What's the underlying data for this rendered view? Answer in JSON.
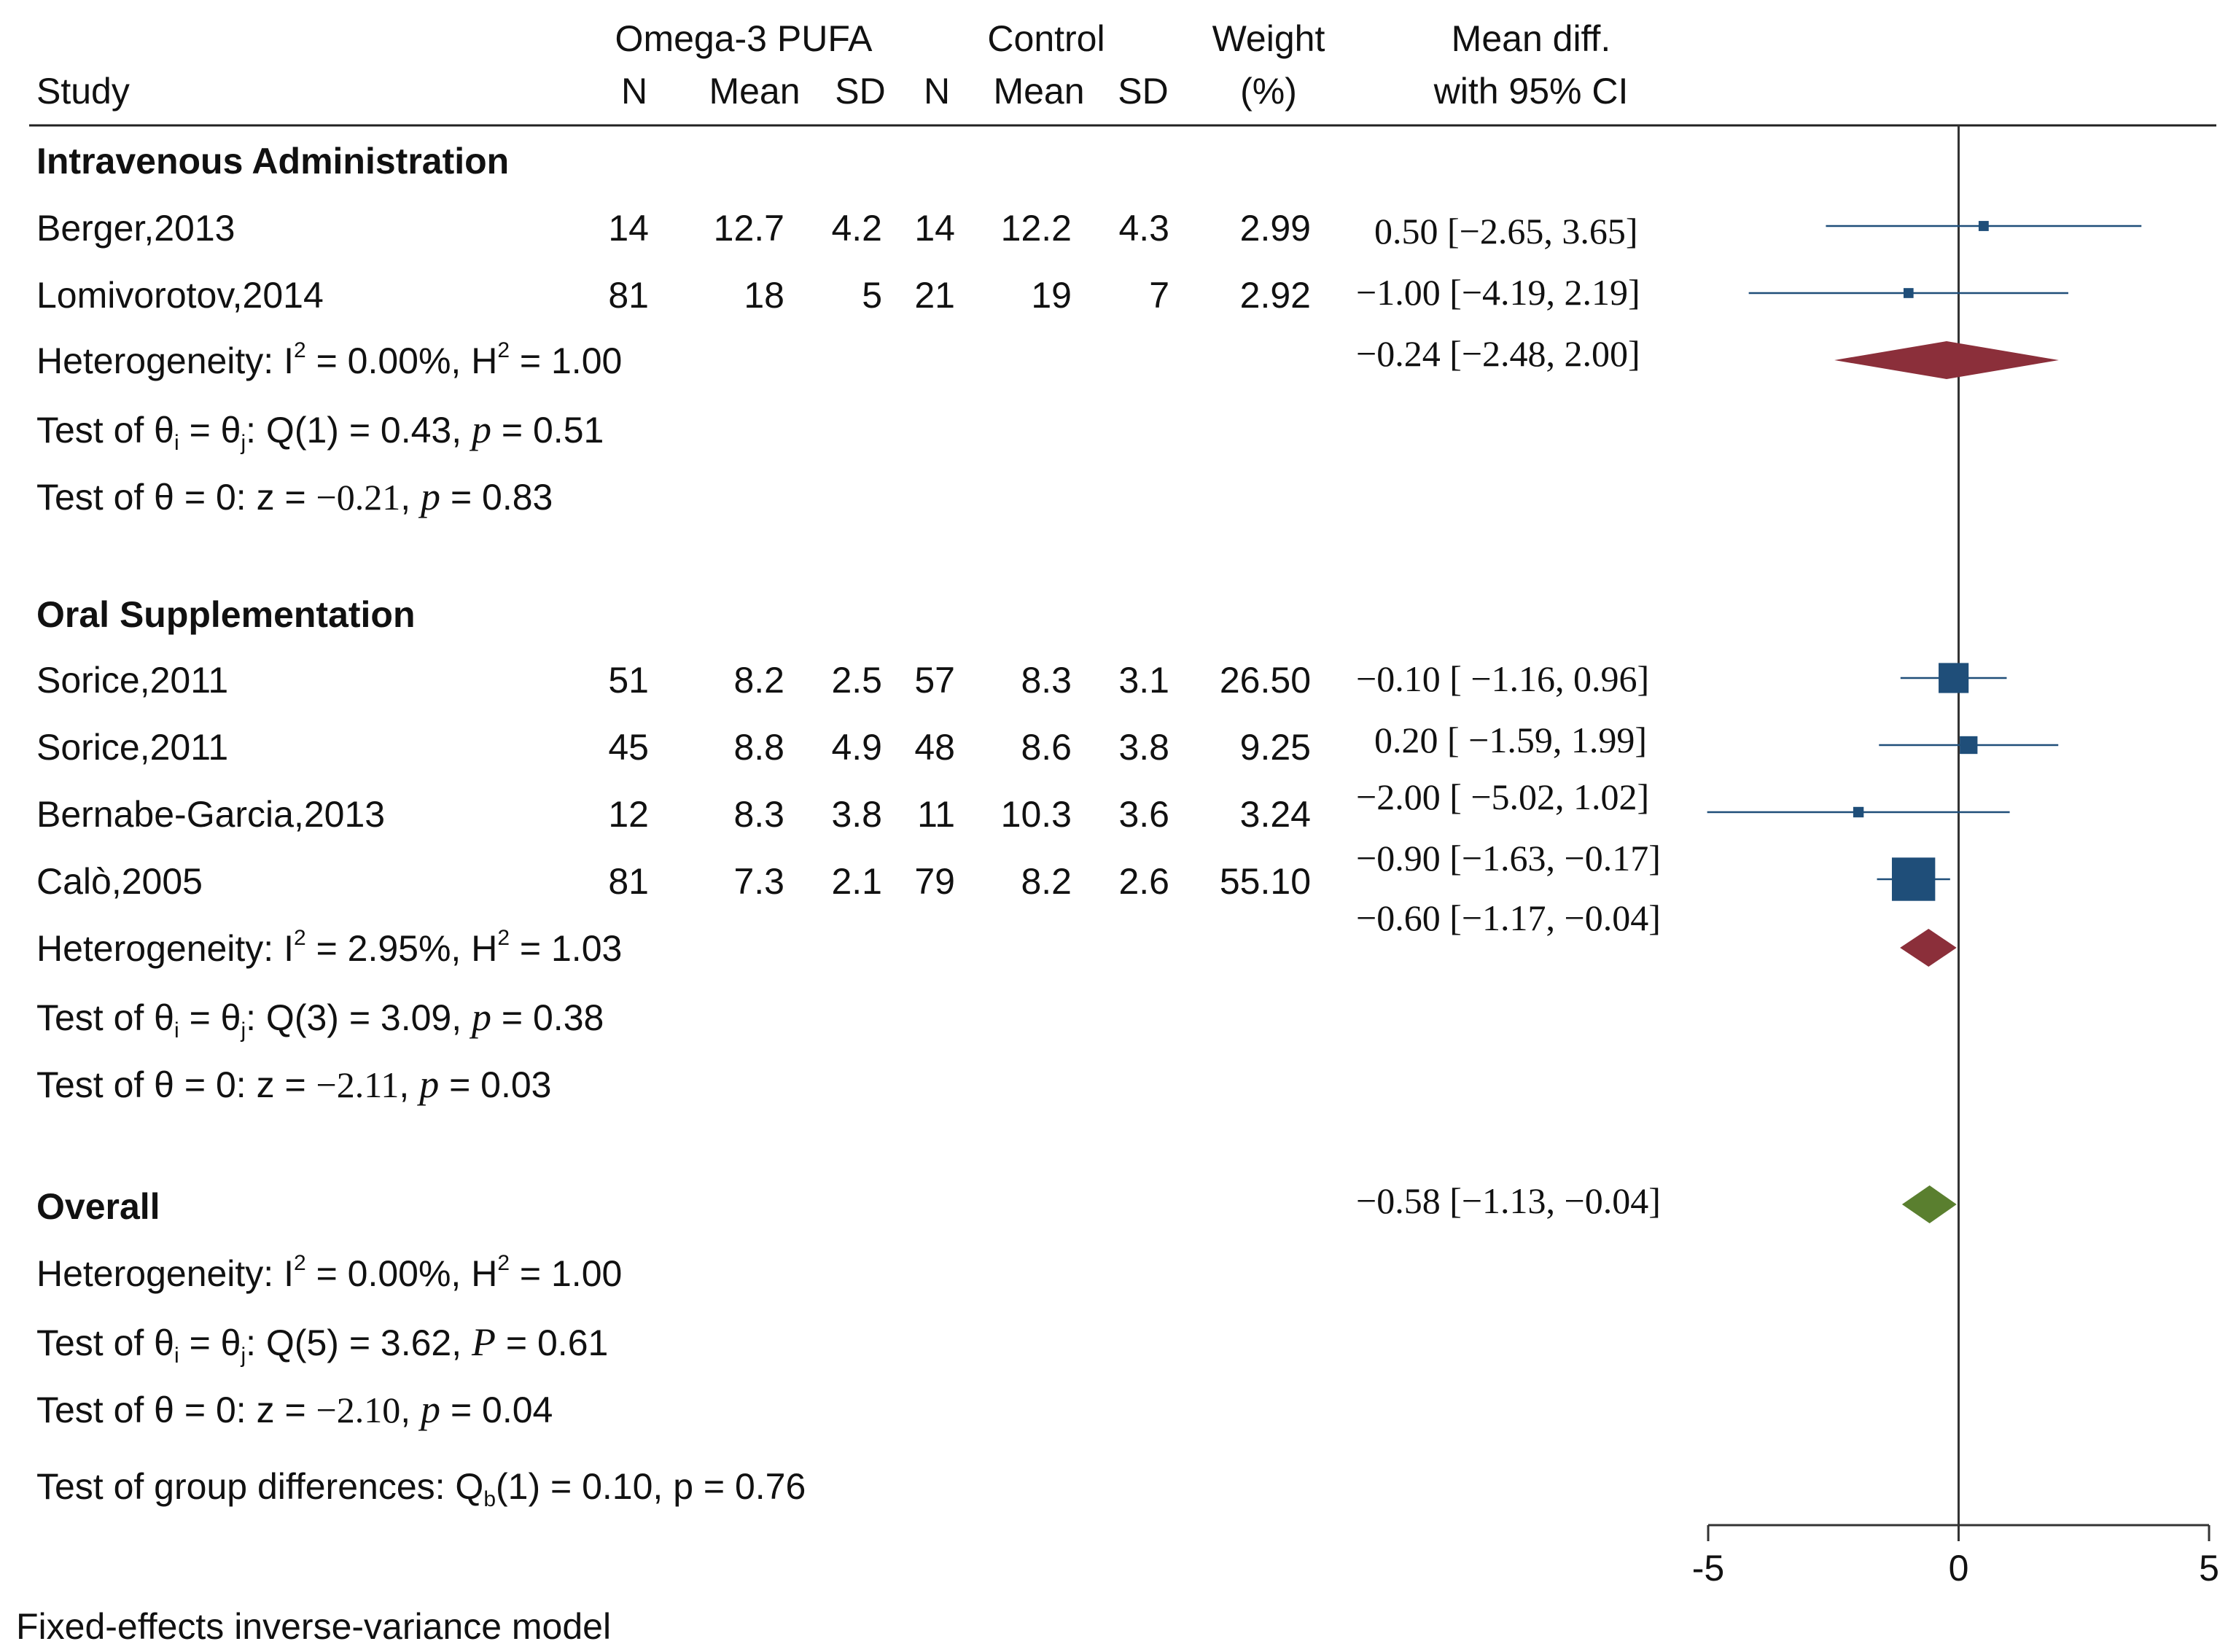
{
  "chart_data": {
    "type": "forest",
    "title": "",
    "model_note": "Fixed-effects inverse-variance model",
    "columns": {
      "study": "Study",
      "group1": "Omega-3 PUFA",
      "group2": "Control",
      "n": "N",
      "mean": "Mean",
      "sd": "SD",
      "weight_top": "Weight",
      "weight_bottom": "(%)",
      "effect_top": "Mean diff.",
      "effect_bottom": "with 95% CI"
    },
    "xlim": [
      -5,
      5
    ],
    "xticks": [
      "-5",
      "0",
      "5"
    ],
    "xtick_values": [
      -5,
      0,
      5
    ],
    "groups": [
      {
        "name": "Intravenous Administration",
        "studies": [
          {
            "study": "Berger,2013",
            "n1": "14",
            "mean1": "12.7",
            "sd1": "4.2",
            "n2": "14",
            "mean2": "12.2",
            "sd2": "4.3",
            "weight": "2.99",
            "ci_text": "0.50 [−2.65, 3.65]",
            "est": 0.5,
            "lo": -2.65,
            "hi": 3.65
          },
          {
            "study": "Lomivorotov,2014",
            "n1": "81",
            "mean1": "18",
            "sd1": "5",
            "n2": "21",
            "mean2": "19",
            "sd2": "7",
            "weight": "2.92",
            "ci_text": "−1.00 [−4.19, 2.19]",
            "est": -1.0,
            "lo": -4.19,
            "hi": 2.19
          }
        ],
        "pooled": {
          "ci_text": "−0.24 [−2.48, 2.00]",
          "est": -0.24,
          "lo": -2.48,
          "hi": 2.0,
          "color": "#8b2f3a"
        },
        "het": {
          "label": "Heterogeneity: I",
          "rest": " = 0.00%, H",
          "rest2": " = 1.00",
          "sup": "2"
        },
        "q": {
          "prefix": "Test of θ",
          "i": "i",
          "mid": " = θ",
          "j": "j",
          "after": ": Q(1) = 0.43, ",
          "p": "p",
          "pval": " = 0.51"
        },
        "z": {
          "prefix": "Test of θ = 0: z = ",
          "zval": "−0.21",
          "sep": ", ",
          "p": "p",
          "pval": " = 0.83"
        }
      },
      {
        "name": "Oral Supplementation",
        "studies": [
          {
            "study": "Sorice,2011",
            "n1": "51",
            "mean1": "8.2",
            "sd1": "2.5",
            "n2": "57",
            "mean2": "8.3",
            "sd2": "3.1",
            "weight": "26.50",
            "ci_text": "−0.10 [ −1.16,   0.96]",
            "est": -0.1,
            "lo": -1.16,
            "hi": 0.96
          },
          {
            "study": "Sorice,2011",
            "n1": "45",
            "mean1": "8.8",
            "sd1": "4.9",
            "n2": "48",
            "mean2": "8.6",
            "sd2": "3.8",
            "weight": "9.25",
            "ci_text": "0.20 [ −1.59,   1.99]",
            "est": 0.2,
            "lo": -1.59,
            "hi": 1.99
          },
          {
            "study": "Bernabe-Garcia,2013",
            "n1": "12",
            "mean1": "8.3",
            "sd1": "3.8",
            "n2": "11",
            "mean2": "10.3",
            "sd2": "3.6",
            "weight": "3.24",
            "ci_text": "−2.00 [ −5.02,   1.02]",
            "est": -2.0,
            "lo": -5.02,
            "hi": 1.02
          },
          {
            "study": "Calò,2005",
            "n1": "81",
            "mean1": "7.3",
            "sd1": "2.1",
            "n2": "79",
            "mean2": "8.2",
            "sd2": "2.6",
            "weight": "55.10",
            "ci_text": "−0.90 [−1.63, −0.17]",
            "est": -0.9,
            "lo": -1.63,
            "hi": -0.17
          }
        ],
        "pooled": {
          "ci_text": "−0.60 [−1.17, −0.04]",
          "est": -0.6,
          "lo": -1.17,
          "hi": -0.04,
          "color": "#8b2f3a"
        },
        "het": {
          "label": "Heterogeneity: I",
          "rest": " = 2.95%, H",
          "rest2": " = 1.03",
          "sup": "2"
        },
        "q": {
          "prefix": "Test of θ",
          "i": "i",
          "mid": " = θ",
          "j": "j",
          "after": ": Q(3) = 3.09, ",
          "p": "p",
          "pval": " = 0.38"
        },
        "z": {
          "prefix": "Test of θ = 0: z = ",
          "zval": "−2.11",
          "sep": ", ",
          "p": "p",
          "pval": " = 0.03"
        }
      }
    ],
    "overall": {
      "name": "Overall",
      "pooled": {
        "ci_text": "−0.58 [−1.13, −0.04]",
        "est": -0.58,
        "lo": -1.13,
        "hi": -0.04,
        "color": "#5a7f2f"
      },
      "het": {
        "label": "Heterogeneity: I",
        "rest": " = 0.00%, H",
        "rest2": " = 1.00",
        "sup": "2"
      },
      "q": {
        "prefix": "Test of θ",
        "i": "i",
        "mid": " = θ",
        "j": "j",
        "after": ": Q(5) = 3.62, ",
        "p": "P",
        "pval": " = 0.61"
      },
      "z": {
        "prefix": "Test of θ = 0: z = ",
        "zval": "−2.10",
        "sep": ", ",
        "p": "p",
        "pval": " = 0.04"
      }
    },
    "group_diff": {
      "prefix": "Test of group differences: Q",
      "sub": "b",
      "rest": "(1) = 0.10, p = 0.76"
    },
    "marker_color": "#1f4e79",
    "line_color": "#1f4e79",
    "axis_color": "#333333"
  }
}
